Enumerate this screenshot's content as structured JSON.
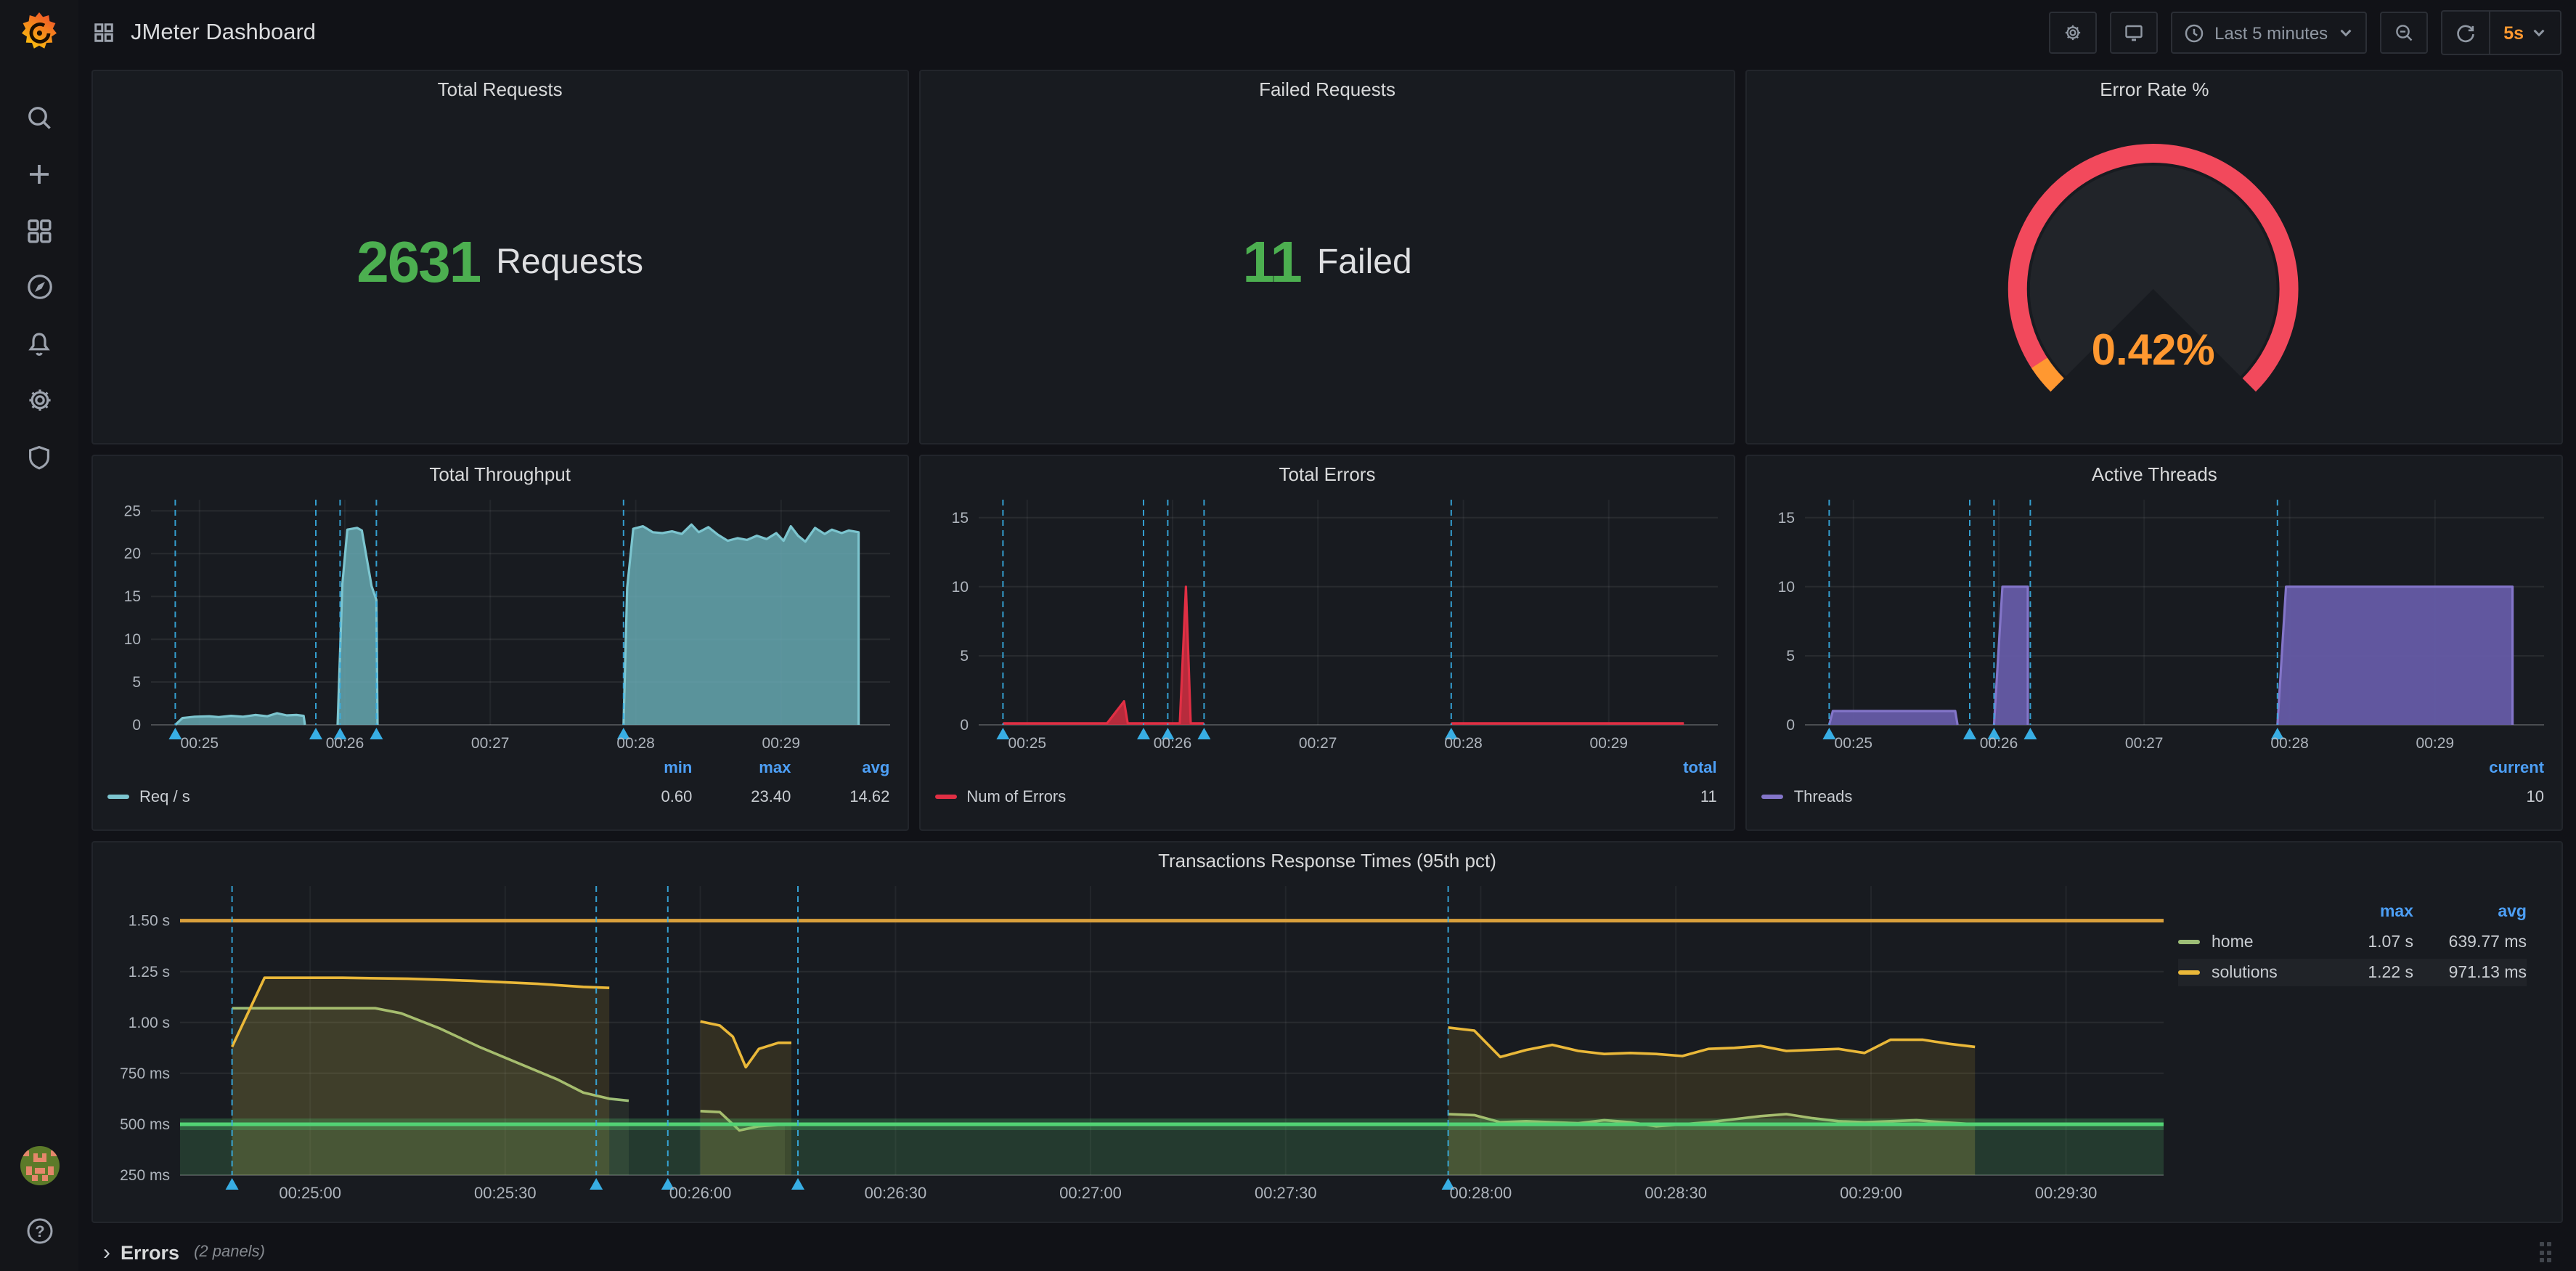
{
  "topbar": {
    "title": "JMeter Dashboard",
    "time_range": "Last 5 minutes",
    "refresh_interval": "5s"
  },
  "sidebar": {
    "icons": [
      "grafana-logo",
      "search",
      "create-plus",
      "dashboards",
      "explore",
      "alerting",
      "configuration",
      "server-admin",
      "user-avatar",
      "help"
    ]
  },
  "errors_row": {
    "label": "Errors",
    "note": "(2 panels)"
  },
  "colors": {
    "stat_green": "#4CAF50",
    "gauge_red": "#F2495C",
    "orange": "#FF9830",
    "legend_header_blue": "#4D9FF5",
    "annotation_cyan": "#38AEE4",
    "panel_bg": "#181b20"
  },
  "chart_data": [
    {
      "type": "stat",
      "title": "Total Requests",
      "value": "2631",
      "unit": "Requests",
      "color": "#4CAF50"
    },
    {
      "type": "stat",
      "title": "Failed Requests",
      "value": "11",
      "unit": "Failed",
      "color": "#4CAF50"
    },
    {
      "type": "gauge",
      "title": "Error Rate %",
      "value": "0.42%",
      "value_pct": 0.42,
      "ring_color": "#F2495C",
      "value_color": "#FF9830"
    },
    {
      "type": "area",
      "title": "Total Throughput",
      "ylim": [
        0,
        26.3
      ],
      "yticks": [
        {
          "v": 0,
          "label": "0"
        },
        {
          "v": 5,
          "label": "5"
        },
        {
          "v": 10,
          "label": "10"
        },
        {
          "v": 15,
          "label": "15"
        },
        {
          "v": 20,
          "label": "20"
        },
        {
          "v": 25,
          "label": "25"
        }
      ],
      "xlim": [
        0,
        305
      ],
      "xticks": [
        {
          "t": 20,
          "label": "00:25"
        },
        {
          "t": 80,
          "label": "00:26"
        },
        {
          "t": 140,
          "label": "00:27"
        },
        {
          "t": 200,
          "label": "00:28"
        },
        {
          "t": 260,
          "label": "00:29"
        }
      ],
      "annotations": [
        10,
        68,
        78,
        93,
        195
      ],
      "series": [
        {
          "name": "Req / s",
          "color": "#7CC5CF",
          "fill": "rgba(102,168,178,0.85)",
          "width": 1.6,
          "segments": [
            [
              [
                10,
                0
              ],
              [
                13,
                0.8
              ],
              [
                18,
                0.95
              ],
              [
                24,
                1.0
              ],
              [
                28,
                0.9
              ],
              [
                33,
                1.05
              ],
              [
                38,
                0.95
              ],
              [
                43,
                1.15
              ],
              [
                48,
                1.0
              ],
              [
                52,
                1.35
              ],
              [
                56,
                1.1
              ],
              [
                60,
                1.15
              ],
              [
                63,
                1.05
              ],
              [
                63.5,
                0
              ]
            ],
            [
              [
                77,
                0
              ],
              [
                79,
                16.5
              ],
              [
                81,
                22.8
              ],
              [
                85,
                23.0
              ],
              [
                87,
                22.7
              ],
              [
                89,
                19.5
              ],
              [
                91,
                16.2
              ],
              [
                93,
                14.6
              ],
              [
                93.5,
                0
              ]
            ],
            [
              [
                195,
                0
              ],
              [
                196.5,
                16
              ],
              [
                199,
                22.9
              ],
              [
                203,
                23.2
              ],
              [
                207,
                22.5
              ],
              [
                211,
                22.4
              ],
              [
                215,
                22.6
              ],
              [
                219,
                22.3
              ],
              [
                223,
                23.4
              ],
              [
                226,
                22.5
              ],
              [
                230,
                23.1
              ],
              [
                234,
                22.2
              ],
              [
                238,
                21.5
              ],
              [
                242,
                21.8
              ],
              [
                246,
                21.6
              ],
              [
                250,
                22.1
              ],
              [
                254,
                21.7
              ],
              [
                258,
                22.4
              ],
              [
                261,
                21.5
              ],
              [
                264,
                23.2
              ],
              [
                267,
                22.1
              ],
              [
                270,
                21.4
              ],
              [
                274,
                23.0
              ],
              [
                278,
                22.3
              ],
              [
                281,
                22.8
              ],
              [
                285,
                22.4
              ],
              [
                288,
                22.7
              ],
              [
                292,
                22.5
              ],
              [
                292,
                0
              ]
            ]
          ]
        }
      ],
      "legend": {
        "label": "Req / s",
        "color": "#7CC5CF",
        "cols": [
          "min",
          "max",
          "avg"
        ],
        "vals": [
          "0.60",
          "23.40",
          "14.62"
        ]
      }
    },
    {
      "type": "area",
      "title": "Total Errors",
      "ylim": [
        0,
        16.3
      ],
      "yticks": [
        {
          "v": 0,
          "label": "0"
        },
        {
          "v": 5,
          "label": "5"
        },
        {
          "v": 10,
          "label": "10"
        },
        {
          "v": 15,
          "label": "15"
        }
      ],
      "xlim": [
        0,
        305
      ],
      "xticks": [
        {
          "t": 20,
          "label": "00:25"
        },
        {
          "t": 80,
          "label": "00:26"
        },
        {
          "t": 140,
          "label": "00:27"
        },
        {
          "t": 200,
          "label": "00:28"
        },
        {
          "t": 260,
          "label": "00:29"
        }
      ],
      "annotations": [
        10,
        68,
        78,
        93,
        195
      ],
      "series": [
        {
          "name": "Num of Errors",
          "color": "#E02F44",
          "fill": "rgba(224,47,68,0.8)",
          "width": 1.6,
          "segments": [
            [
              [
                10,
                0.12
              ],
              [
                53,
                0.12
              ],
              [
                60,
                1.7
              ],
              [
                61.5,
                0.12
              ],
              [
                83,
                0.12
              ],
              [
                85.5,
                10
              ],
              [
                87.5,
                0.12
              ],
              [
                93,
                0.12
              ]
            ],
            [
              [
                195,
                0.12
              ],
              [
                291,
                0.12
              ]
            ]
          ]
        }
      ],
      "legend": {
        "label": "Num of Errors",
        "color": "#E02F44",
        "cols": [
          "total"
        ],
        "vals": [
          "11"
        ]
      }
    },
    {
      "type": "area",
      "title": "Active Threads",
      "ylim": [
        0,
        16.3
      ],
      "yticks": [
        {
          "v": 0,
          "label": "0"
        },
        {
          "v": 5,
          "label": "5"
        },
        {
          "v": 10,
          "label": "10"
        },
        {
          "v": 15,
          "label": "15"
        }
      ],
      "xlim": [
        0,
        305
      ],
      "xticks": [
        {
          "t": 20,
          "label": "00:25"
        },
        {
          "t": 80,
          "label": "00:26"
        },
        {
          "t": 140,
          "label": "00:27"
        },
        {
          "t": 200,
          "label": "00:28"
        },
        {
          "t": 260,
          "label": "00:29"
        }
      ],
      "annotations": [
        10,
        68,
        78,
        93,
        195
      ],
      "series": [
        {
          "name": "Threads",
          "color": "#8375C9",
          "fill": "rgba(101,91,166,0.95)",
          "width": 1.6,
          "segments": [
            [
              [
                10,
                0
              ],
              [
                11.5,
                1
              ],
              [
                62,
                1
              ],
              [
                63,
                0
              ]
            ],
            [
              [
                78,
                0
              ],
              [
                81.5,
                10
              ],
              [
                92,
                10
              ],
              [
                92,
                0
              ]
            ],
            [
              [
                195,
                0
              ],
              [
                198.5,
                10
              ],
              [
                292,
                10
              ],
              [
                292,
                0
              ]
            ]
          ]
        }
      ],
      "legend": {
        "label": "Threads",
        "color": "#8375C9",
        "cols": [
          "current"
        ],
        "vals": [
          "10"
        ]
      }
    },
    {
      "type": "line",
      "title": "Transactions Response Times (95th pct)",
      "ylim": [
        0.25,
        1.67
      ],
      "yticks": [
        {
          "v": 0.25,
          "label": "250 ms"
        },
        {
          "v": 0.5,
          "label": "500 ms"
        },
        {
          "v": 0.75,
          "label": "750 ms"
        },
        {
          "v": 1.0,
          "label": "1.00 s"
        },
        {
          "v": 1.25,
          "label": "1.25 s"
        },
        {
          "v": 1.5,
          "label": "1.50 s"
        }
      ],
      "xlim": [
        0,
        305
      ],
      "xticks": [
        {
          "t": 20,
          "label": "00:25:00"
        },
        {
          "t": 50,
          "label": "00:25:30"
        },
        {
          "t": 80,
          "label": "00:26:00"
        },
        {
          "t": 110,
          "label": "00:26:30"
        },
        {
          "t": 140,
          "label": "00:27:00"
        },
        {
          "t": 170,
          "label": "00:27:30"
        },
        {
          "t": 200,
          "label": "00:28:00"
        },
        {
          "t": 230,
          "label": "00:28:30"
        },
        {
          "t": 260,
          "label": "00:29:00"
        },
        {
          "t": 290,
          "label": "00:29:30"
        }
      ],
      "annotations": [
        8,
        64,
        75,
        95,
        195
      ],
      "thresholds": [
        {
          "y": 1.5,
          "color": "#D9A03C",
          "width": 2.5
        },
        {
          "y": 0.5,
          "color": "#52D274",
          "width": 2.5,
          "glow": true,
          "fill_below": "rgba(82,170,100,0.22)"
        }
      ],
      "series": [
        {
          "name": "home",
          "color": "#9DBE77",
          "fill": "rgba(163,195,126,0.10)",
          "width": 1.8,
          "segments": [
            [
              [
                8,
                1.07
              ],
              [
                30,
                1.07
              ],
              [
                34,
                1.045
              ],
              [
                40,
                0.97
              ],
              [
                46,
                0.88
              ],
              [
                52,
                0.8
              ],
              [
                58,
                0.72
              ],
              [
                62,
                0.655
              ],
              [
                66,
                0.625
              ],
              [
                69,
                0.615
              ]
            ],
            [
              [
                80,
                0.565
              ],
              [
                83,
                0.56
              ],
              [
                86,
                0.47
              ],
              [
                89,
                0.49
              ],
              [
                93,
                0.5
              ]
            ],
            [
              [
                195,
                0.55
              ],
              [
                199,
                0.545
              ],
              [
                203,
                0.51
              ],
              [
                207,
                0.515
              ],
              [
                211,
                0.51
              ],
              [
                215,
                0.505
              ],
              [
                219,
                0.52
              ],
              [
                223,
                0.51
              ],
              [
                227,
                0.49
              ],
              [
                231,
                0.5
              ],
              [
                235,
                0.51
              ],
              [
                239,
                0.525
              ],
              [
                243,
                0.54
              ],
              [
                247,
                0.55
              ],
              [
                251,
                0.53
              ],
              [
                255,
                0.515
              ],
              [
                259,
                0.51
              ],
              [
                263,
                0.515
              ],
              [
                267,
                0.52
              ],
              [
                271,
                0.51
              ],
              [
                276,
                0.5
              ]
            ]
          ]
        },
        {
          "name": "solutions",
          "color": "#EAB839",
          "fill": "rgba(234,184,57,0.13)",
          "width": 1.8,
          "segments": [
            [
              [
                8,
                0.88
              ],
              [
                13,
                1.22
              ],
              [
                25,
                1.22
              ],
              [
                35,
                1.215
              ],
              [
                45,
                1.205
              ],
              [
                55,
                1.19
              ],
              [
                62,
                1.175
              ],
              [
                66,
                1.17
              ]
            ],
            [
              [
                80,
                1.005
              ],
              [
                83,
                0.985
              ],
              [
                85,
                0.93
              ],
              [
                87,
                0.78
              ],
              [
                89,
                0.87
              ],
              [
                92,
                0.9
              ],
              [
                94,
                0.9
              ]
            ],
            [
              [
                195,
                0.975
              ],
              [
                199,
                0.96
              ],
              [
                203,
                0.83
              ],
              [
                207,
                0.865
              ],
              [
                211,
                0.89
              ],
              [
                215,
                0.86
              ],
              [
                219,
                0.845
              ],
              [
                223,
                0.85
              ],
              [
                227,
                0.845
              ],
              [
                231,
                0.835
              ],
              [
                235,
                0.87
              ],
              [
                239,
                0.875
              ],
              [
                243,
                0.885
              ],
              [
                247,
                0.86
              ],
              [
                251,
                0.865
              ],
              [
                255,
                0.87
              ],
              [
                259,
                0.85
              ],
              [
                263,
                0.915
              ],
              [
                268,
                0.915
              ],
              [
                272,
                0.895
              ],
              [
                276,
                0.88
              ]
            ]
          ]
        }
      ],
      "legend": {
        "cols": [
          "max",
          "avg"
        ],
        "rows": [
          {
            "label": "home",
            "color": "#9DBE77",
            "vals": [
              "1.07 s",
              "639.77 ms"
            ],
            "highlight": false
          },
          {
            "label": "solutions",
            "color": "#EAB839",
            "vals": [
              "1.22 s",
              "971.13 ms"
            ],
            "highlight": true
          }
        ]
      }
    }
  ]
}
